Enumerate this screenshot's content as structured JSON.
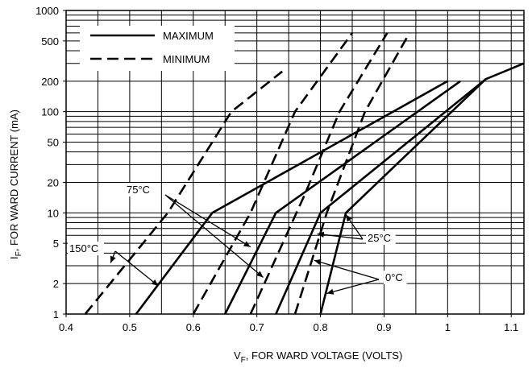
{
  "chart_data": {
    "type": "line",
    "x_scale": "linear",
    "y_scale": "log",
    "xlim": [
      0.4,
      1.12
    ],
    "ylim": [
      1,
      1000
    ],
    "xlabel": {
      "main": "V",
      "sub": "F",
      "rest": ", FOR WARD VOLTAGE (VOLTS)"
    },
    "ylabel": {
      "main": "I",
      "sub": "F",
      "rest": ", FOR WARD CURRENT   (mA)"
    },
    "x_ticks": [
      {
        "value": 0.4,
        "label": "0.4"
      },
      {
        "value": 0.5,
        "label": "0.5"
      },
      {
        "value": 0.6,
        "label": "0.6"
      },
      {
        "value": 0.7,
        "label": "0.7"
      },
      {
        "value": 0.8,
        "label": "0.8"
      },
      {
        "value": 0.9,
        "label": "0.9"
      },
      {
        "value": 1.0,
        "label": "1"
      },
      {
        "value": 1.1,
        "label": "1.1"
      }
    ],
    "x_minor_grid": [
      0.45,
      0.55,
      0.65,
      0.75,
      0.85,
      0.95,
      1.05
    ],
    "y_ticks": [
      {
        "value": 1,
        "label": "1"
      },
      {
        "value": 2,
        "label": "2"
      },
      {
        "value": 5,
        "label": "5"
      },
      {
        "value": 10,
        "label": "10"
      },
      {
        "value": 20,
        "label": "20"
      },
      {
        "value": 50,
        "label": "50"
      },
      {
        "value": 100,
        "label": "100"
      },
      {
        "value": 200,
        "label": "200"
      },
      {
        "value": 500,
        "label": "500"
      },
      {
        "value": 1000,
        "label": "1000"
      }
    ],
    "y_minor_grid": [
      3,
      4,
      6,
      7,
      8,
      9,
      30,
      40,
      60,
      70,
      80,
      90,
      300,
      400,
      600,
      700,
      800,
      900
    ],
    "legend": {
      "position": "top-left",
      "entries": [
        {
          "label": "MAXIMUM",
          "style": "solid"
        },
        {
          "label": "MINIMUM",
          "style": "dashed"
        }
      ]
    },
    "series": [
      {
        "group": "150°C",
        "style": "dashed",
        "points": [
          [
            0.43,
            1
          ],
          [
            0.56,
            10
          ],
          [
            0.66,
            100
          ],
          [
            0.74,
            250
          ]
        ]
      },
      {
        "group": "150°C",
        "style": "solid",
        "points": [
          [
            0.51,
            1
          ],
          [
            0.63,
            10
          ],
          [
            1.0,
            200
          ]
        ]
      },
      {
        "group": "75°C",
        "style": "dashed",
        "points": [
          [
            0.6,
            1
          ],
          [
            0.69,
            10
          ],
          [
            0.76,
            100
          ],
          [
            0.85,
            600
          ]
        ]
      },
      {
        "group": "75°C",
        "style": "solid",
        "points": [
          [
            0.65,
            1
          ],
          [
            0.73,
            10
          ],
          [
            1.02,
            200
          ]
        ]
      },
      {
        "group": "25°C",
        "style": "dashed",
        "points": [
          [
            0.69,
            1
          ],
          [
            0.775,
            15
          ],
          [
            0.83,
            100
          ],
          [
            0.905,
            600
          ]
        ]
      },
      {
        "group": "25°C",
        "style": "solid",
        "points": [
          [
            0.73,
            1
          ],
          [
            0.8,
            10
          ],
          [
            1.06,
            210
          ],
          [
            1.12,
            300
          ]
        ]
      },
      {
        "group": "0°C",
        "style": "dashed",
        "points": [
          [
            0.76,
            1
          ],
          [
            0.81,
            10
          ],
          [
            0.87,
            100
          ],
          [
            0.94,
            600
          ]
        ]
      },
      {
        "group": "0°C",
        "style": "solid",
        "points": [
          [
            0.8,
            1
          ],
          [
            0.84,
            10
          ],
          [
            1.06,
            210
          ]
        ]
      }
    ],
    "annotations": [
      {
        "label": "150°C",
        "arrows_to": [
          [
            0.47,
            3.2
          ],
          [
            0.545,
            1.9
          ]
        ]
      },
      {
        "label": "75°C",
        "arrows_to": [
          [
            0.69,
            4.6
          ],
          [
            0.71,
            2.3
          ]
        ]
      },
      {
        "label": "25°C",
        "arrows_to": [
          [
            0.795,
            6.2
          ],
          [
            0.84,
            9.6
          ]
        ]
      },
      {
        "label": "0°C",
        "arrows_to": [
          [
            0.79,
            3.4
          ],
          [
            0.81,
            1.6
          ]
        ]
      }
    ]
  }
}
